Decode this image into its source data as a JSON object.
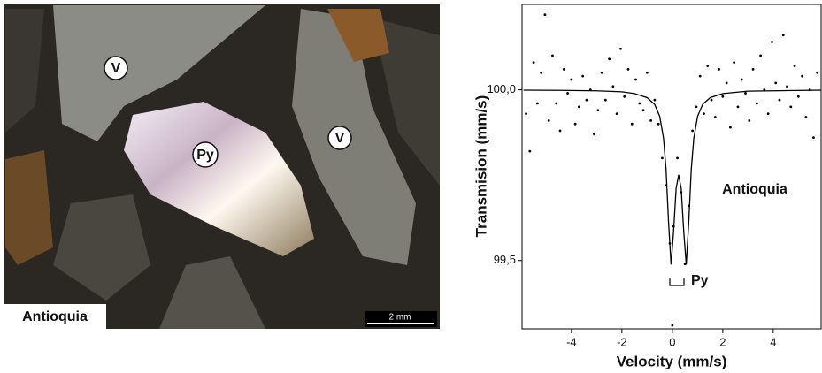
{
  "micrograph": {
    "labels": [
      "V",
      "V",
      "Py"
    ],
    "caption": "Antioquia",
    "scale_bar": "2 mm"
  },
  "chart_data": {
    "type": "scatter",
    "x_label": "Velocity (mm/s)",
    "y_label": "Transmision (mm/s)",
    "annotations": [
      "Antioquia",
      "Py"
    ],
    "xlim": [
      -5.96,
      5.9
    ],
    "ylim": [
      99.3,
      100.25
    ],
    "xticks": [
      -4,
      -2,
      0,
      2,
      4
    ],
    "yticks": [
      {
        "value": 99.5,
        "label": "99,5"
      },
      {
        "value": 100,
        "label": "100,0"
      }
    ],
    "points": {
      "color": "#000000",
      "x": [
        -5.8,
        -5.65,
        -5.5,
        -5.35,
        -5.2,
        -5.05,
        -4.9,
        -4.75,
        -4.6,
        -4.45,
        -4.3,
        -4.15,
        -4.0,
        -3.85,
        -3.7,
        -3.55,
        -3.4,
        -3.25,
        -3.1,
        -2.95,
        -2.8,
        -2.65,
        -2.5,
        -2.35,
        -2.2,
        -2.05,
        -1.9,
        -1.75,
        -1.6,
        -1.45,
        -1.3,
        -1.15,
        -1.0,
        -0.85,
        -0.7,
        -0.55,
        -0.4,
        -0.25,
        -0.1,
        0.0,
        0.05,
        0.2,
        0.35,
        0.5,
        0.65,
        0.8,
        0.95,
        1.1,
        1.25,
        1.4,
        1.55,
        1.7,
        1.85,
        2.0,
        2.15,
        2.3,
        2.45,
        2.6,
        2.75,
        2.9,
        3.05,
        3.2,
        3.35,
        3.5,
        3.65,
        3.8,
        3.95,
        4.1,
        4.25,
        4.4,
        4.55,
        4.7,
        4.85,
        5.0,
        5.15,
        5.3,
        5.45,
        5.6,
        5.75
      ],
      "values": [
        99.93,
        99.82,
        100.08,
        99.96,
        100.05,
        100.22,
        99.91,
        100.1,
        99.96,
        99.88,
        100.06,
        99.99,
        100.03,
        99.9,
        99.95,
        100.04,
        99.97,
        100.0,
        99.87,
        99.94,
        100.05,
        99.97,
        100.09,
        100.01,
        99.93,
        100.12,
        99.98,
        100.06,
        99.9,
        100.03,
        99.96,
        99.94,
        100.05,
        99.91,
        99.97,
        99.9,
        99.8,
        99.72,
        99.55,
        99.31,
        99.6,
        99.8,
        99.7,
        99.49,
        99.66,
        99.88,
        99.95,
        100.04,
        99.93,
        100.07,
        99.97,
        99.92,
        100.06,
        99.98,
        100.02,
        99.89,
        100.08,
        99.95,
        100.03,
        99.99,
        99.91,
        100.06,
        99.96,
        100.1,
        100.0,
        99.93,
        100.14,
        100.02,
        99.97,
        100.16,
        100.01,
        99.95,
        100.07,
        99.98,
        100.04,
        99.92,
        100.0,
        99.86,
        100.05
      ]
    },
    "fit": {
      "color": "#000000",
      "x": [
        -5.9,
        -4,
        -3,
        -2,
        -1.5,
        -1,
        -0.7,
        -0.5,
        -0.35,
        -0.25,
        -0.15,
        -0.05,
        0.05,
        0.15,
        0.25,
        0.35,
        0.45,
        0.55,
        0.65,
        0.75,
        0.85,
        1.0,
        1.2,
        1.5,
        2,
        3,
        4,
        5.9
      ],
      "values": [
        99.999,
        99.998,
        99.997,
        99.994,
        99.989,
        99.977,
        99.957,
        99.922,
        99.858,
        99.767,
        99.612,
        99.488,
        99.587,
        99.711,
        99.751,
        99.711,
        99.587,
        99.488,
        99.612,
        99.767,
        99.858,
        99.922,
        99.957,
        99.977,
        99.989,
        99.996,
        99.997,
        99.999
      ]
    }
  }
}
